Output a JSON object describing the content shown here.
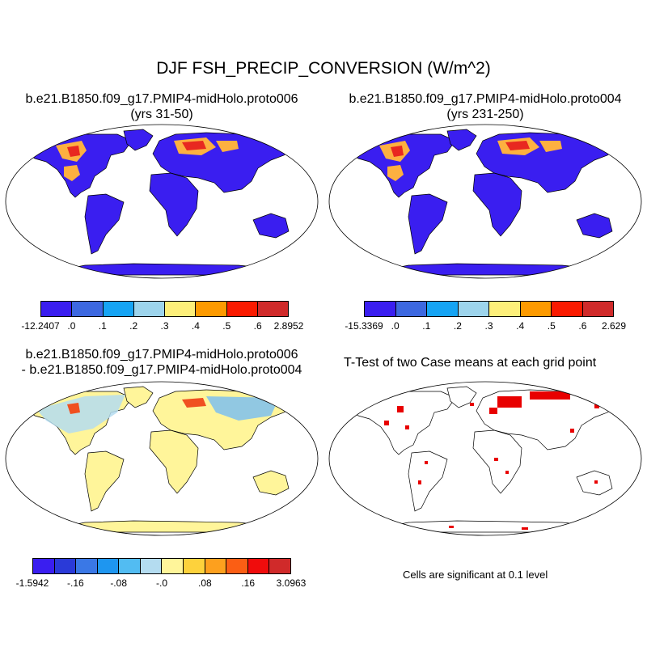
{
  "figure": {
    "title": "DJF FSH_PRECIP_CONVERSION (W/m^2)"
  },
  "panels": {
    "case1": {
      "title_line1": "b.e21.B1850.f09_g17.PMIP4-midHolo.proto006",
      "title_line2": "(yrs 31-50)"
    },
    "case2": {
      "title_line1": "b.e21.B1850.f09_g17.PMIP4-midHolo.proto004",
      "title_line2": "(yrs 231-250)"
    },
    "diff": {
      "title_line1": "b.e21.B1850.f09_g17.PMIP4-midHolo.proto006",
      "title_line2": "- b.e21.B1850.f09_g17.PMIP4-midHolo.proto004"
    },
    "ttest": {
      "title": "T-Test of two Case means at each grid point",
      "note": "Cells are significant at 0.1 level"
    }
  },
  "colorbars": {
    "case1": {
      "colors": [
        "#3a1ef0",
        "#3d68e0",
        "#16a4f4",
        "#9dd4ec",
        "#fdef7a",
        "#fd9a00",
        "#fa1a00",
        "#d02a2a"
      ],
      "labels": [
        "-12.2407",
        ".0",
        ".1",
        ".2",
        ".3",
        ".4",
        ".5",
        ".6",
        "2.8952"
      ]
    },
    "case2": {
      "colors": [
        "#3a1ef0",
        "#3d68e0",
        "#16a4f4",
        "#9dd4ec",
        "#fdef7a",
        "#fd9a00",
        "#fa1a00",
        "#d02a2a"
      ],
      "labels": [
        "-15.3369",
        ".0",
        ".1",
        ".2",
        ".3",
        ".4",
        ".5",
        ".6",
        "2.629"
      ]
    },
    "diff": {
      "colors": [
        "#3a1ef0",
        "#2a3ad8",
        "#3a78e6",
        "#1e96f0",
        "#52bcf2",
        "#b4dcf0",
        "#fff59a",
        "#fdd23c",
        "#fda01e",
        "#fb5e14",
        "#f00c0c",
        "#d02a2a"
      ],
      "labels": [
        "-1.5942",
        "-.16",
        "-.08",
        "-.0",
        ".08",
        ".16",
        "3.0963"
      ]
    }
  }
}
